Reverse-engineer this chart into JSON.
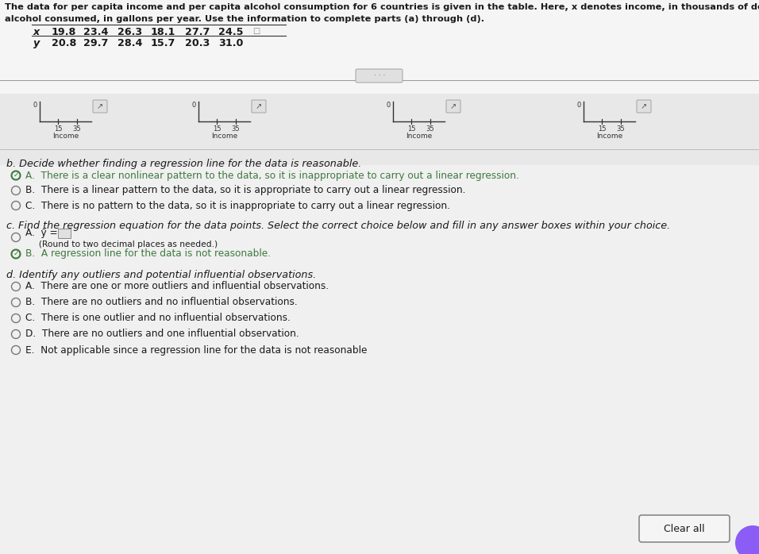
{
  "title_line1": "The data for per capita income and per capita alcohol consumption for 6 countries is given in the table. Here, x denotes income, in thousands of dollars, and y denotes",
  "title_line2": "alcohol consumed, in gallons per year. Use the information to complete parts (a) through (d).",
  "table_x_label": "x",
  "table_y_label": "y",
  "x_values": [
    "19.8",
    "23.4",
    "26.3",
    "18.1",
    "27.7",
    "24.5"
  ],
  "y_values": [
    "20.8",
    "29.7",
    "28.4",
    "15.7",
    "20.3",
    "31.0"
  ],
  "mini_plots": [
    {
      "xlabel": "Income"
    },
    {
      "xlabel": "Income"
    },
    {
      "xlabel": "Income"
    },
    {
      "xlabel": "Income"
    }
  ],
  "part_b_label": "b. Decide whether finding a regression line for the data is reasonable.",
  "part_b_options": [
    {
      "letter": "A",
      "text": "There is a clear nonlinear pattern to the data, so it is inappropriate to carry out a linear regression.",
      "selected": true
    },
    {
      "letter": "B",
      "text": "There is a linear pattern to the data, so it is appropriate to carry out a linear regression.",
      "selected": false
    },
    {
      "letter": "C",
      "text": "There is no pattern to the data, so it is inappropriate to carry out a linear regression.",
      "selected": false
    }
  ],
  "part_c_label": "c. Find the regression equation for the data points. Select the correct choice below and fill in any answer boxes within your choice.",
  "part_c_opt_a_line1": "A.  ŷ =",
  "part_c_opt_a_line2": "     (Round to two decimal places as needed.)",
  "part_c_opt_b_text": "B.  A regression line for the data is not reasonable.",
  "part_c_b_selected": true,
  "part_d_label": "d. Identify any outliers and potential influential observations.",
  "part_d_options": [
    {
      "letter": "A",
      "text": "There are one or more outliers and influential observations.",
      "selected": false
    },
    {
      "letter": "B",
      "text": "There are no outliers and no influential observations.",
      "selected": false
    },
    {
      "letter": "C",
      "text": "There is one outlier and no influential observations.",
      "selected": false
    },
    {
      "letter": "D",
      "text": "There are no outliers and one influential observation.",
      "selected": false
    },
    {
      "letter": "E",
      "text": "Not applicable since a regression line for the data is not reasonable",
      "selected": false
    }
  ],
  "bg_top": "#d8d8d8",
  "bg_bottom": "#e8e8e8",
  "white_color": "#ffffff",
  "text_color": "#1a1a1a",
  "selected_green": "#3d7a3d",
  "radio_color": "#555555",
  "clear_all_text": "Clear all",
  "divider_color": "#aaaaaa",
  "font_size_title": 8.2,
  "font_size_body": 9.2,
  "font_size_small": 7.5
}
